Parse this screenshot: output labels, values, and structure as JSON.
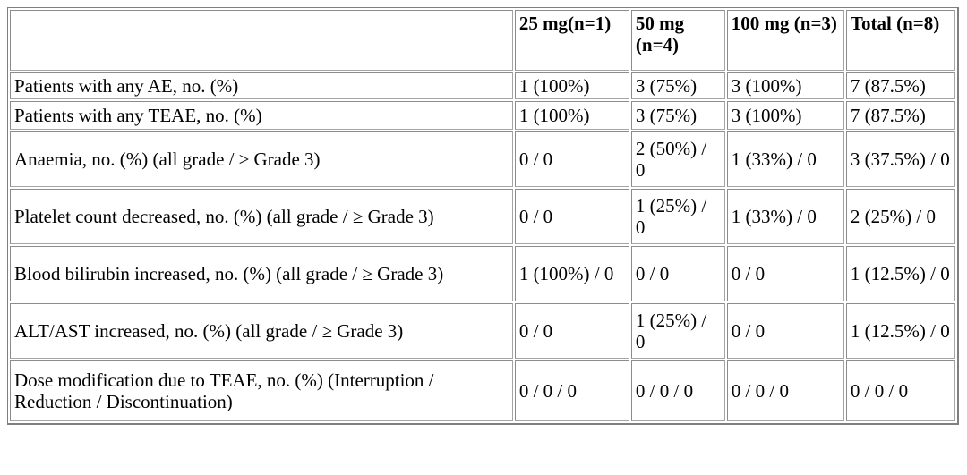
{
  "table": {
    "columns": [
      {
        "label": ""
      },
      {
        "label": "25 mg(n=1)"
      },
      {
        "label": "50 mg (n=4)"
      },
      {
        "label": "100 mg (n=3)"
      },
      {
        "label": "Total (n=8)"
      }
    ],
    "rows": [
      {
        "label": "Patients with any AE, no. (%)",
        "values": [
          "1 (100%)",
          "3 (75%)",
          "3 (100%)",
          "7 (87.5%)"
        ]
      },
      {
        "label": "Patients with any TEAE, no. (%)",
        "values": [
          "1 (100%)",
          "3 (75%)",
          "3 (100%)",
          "7 (87.5%)"
        ]
      },
      {
        "label": "Anaemia, no. (%) (all grade / ≥ Grade 3)",
        "values": [
          "0 / 0",
          "2 (50%) / 0",
          "1 (33%) / 0",
          "3 (37.5%) / 0"
        ]
      },
      {
        "label": "Platelet count decreased, no. (%) (all grade / ≥ Grade 3)",
        "values": [
          "0 / 0",
          "1 (25%) / 0",
          "1 (33%) / 0",
          "2 (25%) / 0"
        ]
      },
      {
        "label": "Blood bilirubin increased, no. (%) (all grade / ≥ Grade 3)",
        "values": [
          "1 (100%) / 0",
          "0 / 0",
          "0 / 0",
          "1 (12.5%) / 0"
        ]
      },
      {
        "label": "ALT/AST increased, no. (%) (all grade / ≥ Grade 3)",
        "values": [
          "0 / 0",
          "1 (25%) / 0",
          "0 / 0",
          "1 (12.5%) / 0"
        ]
      },
      {
        "label": "Dose modification due to TEAE, no. (%) (Interruption / Reduction / Discontinuation)",
        "values": [
          "0 / 0 / 0",
          "0 / 0 / 0",
          "0 / 0 / 0",
          "0 / 0 / 0"
        ]
      }
    ],
    "colors": {
      "border_outer": "#7f7f7f",
      "border_cell": "#a5a5a5",
      "text": "#000000",
      "background": "#ffffff"
    }
  }
}
